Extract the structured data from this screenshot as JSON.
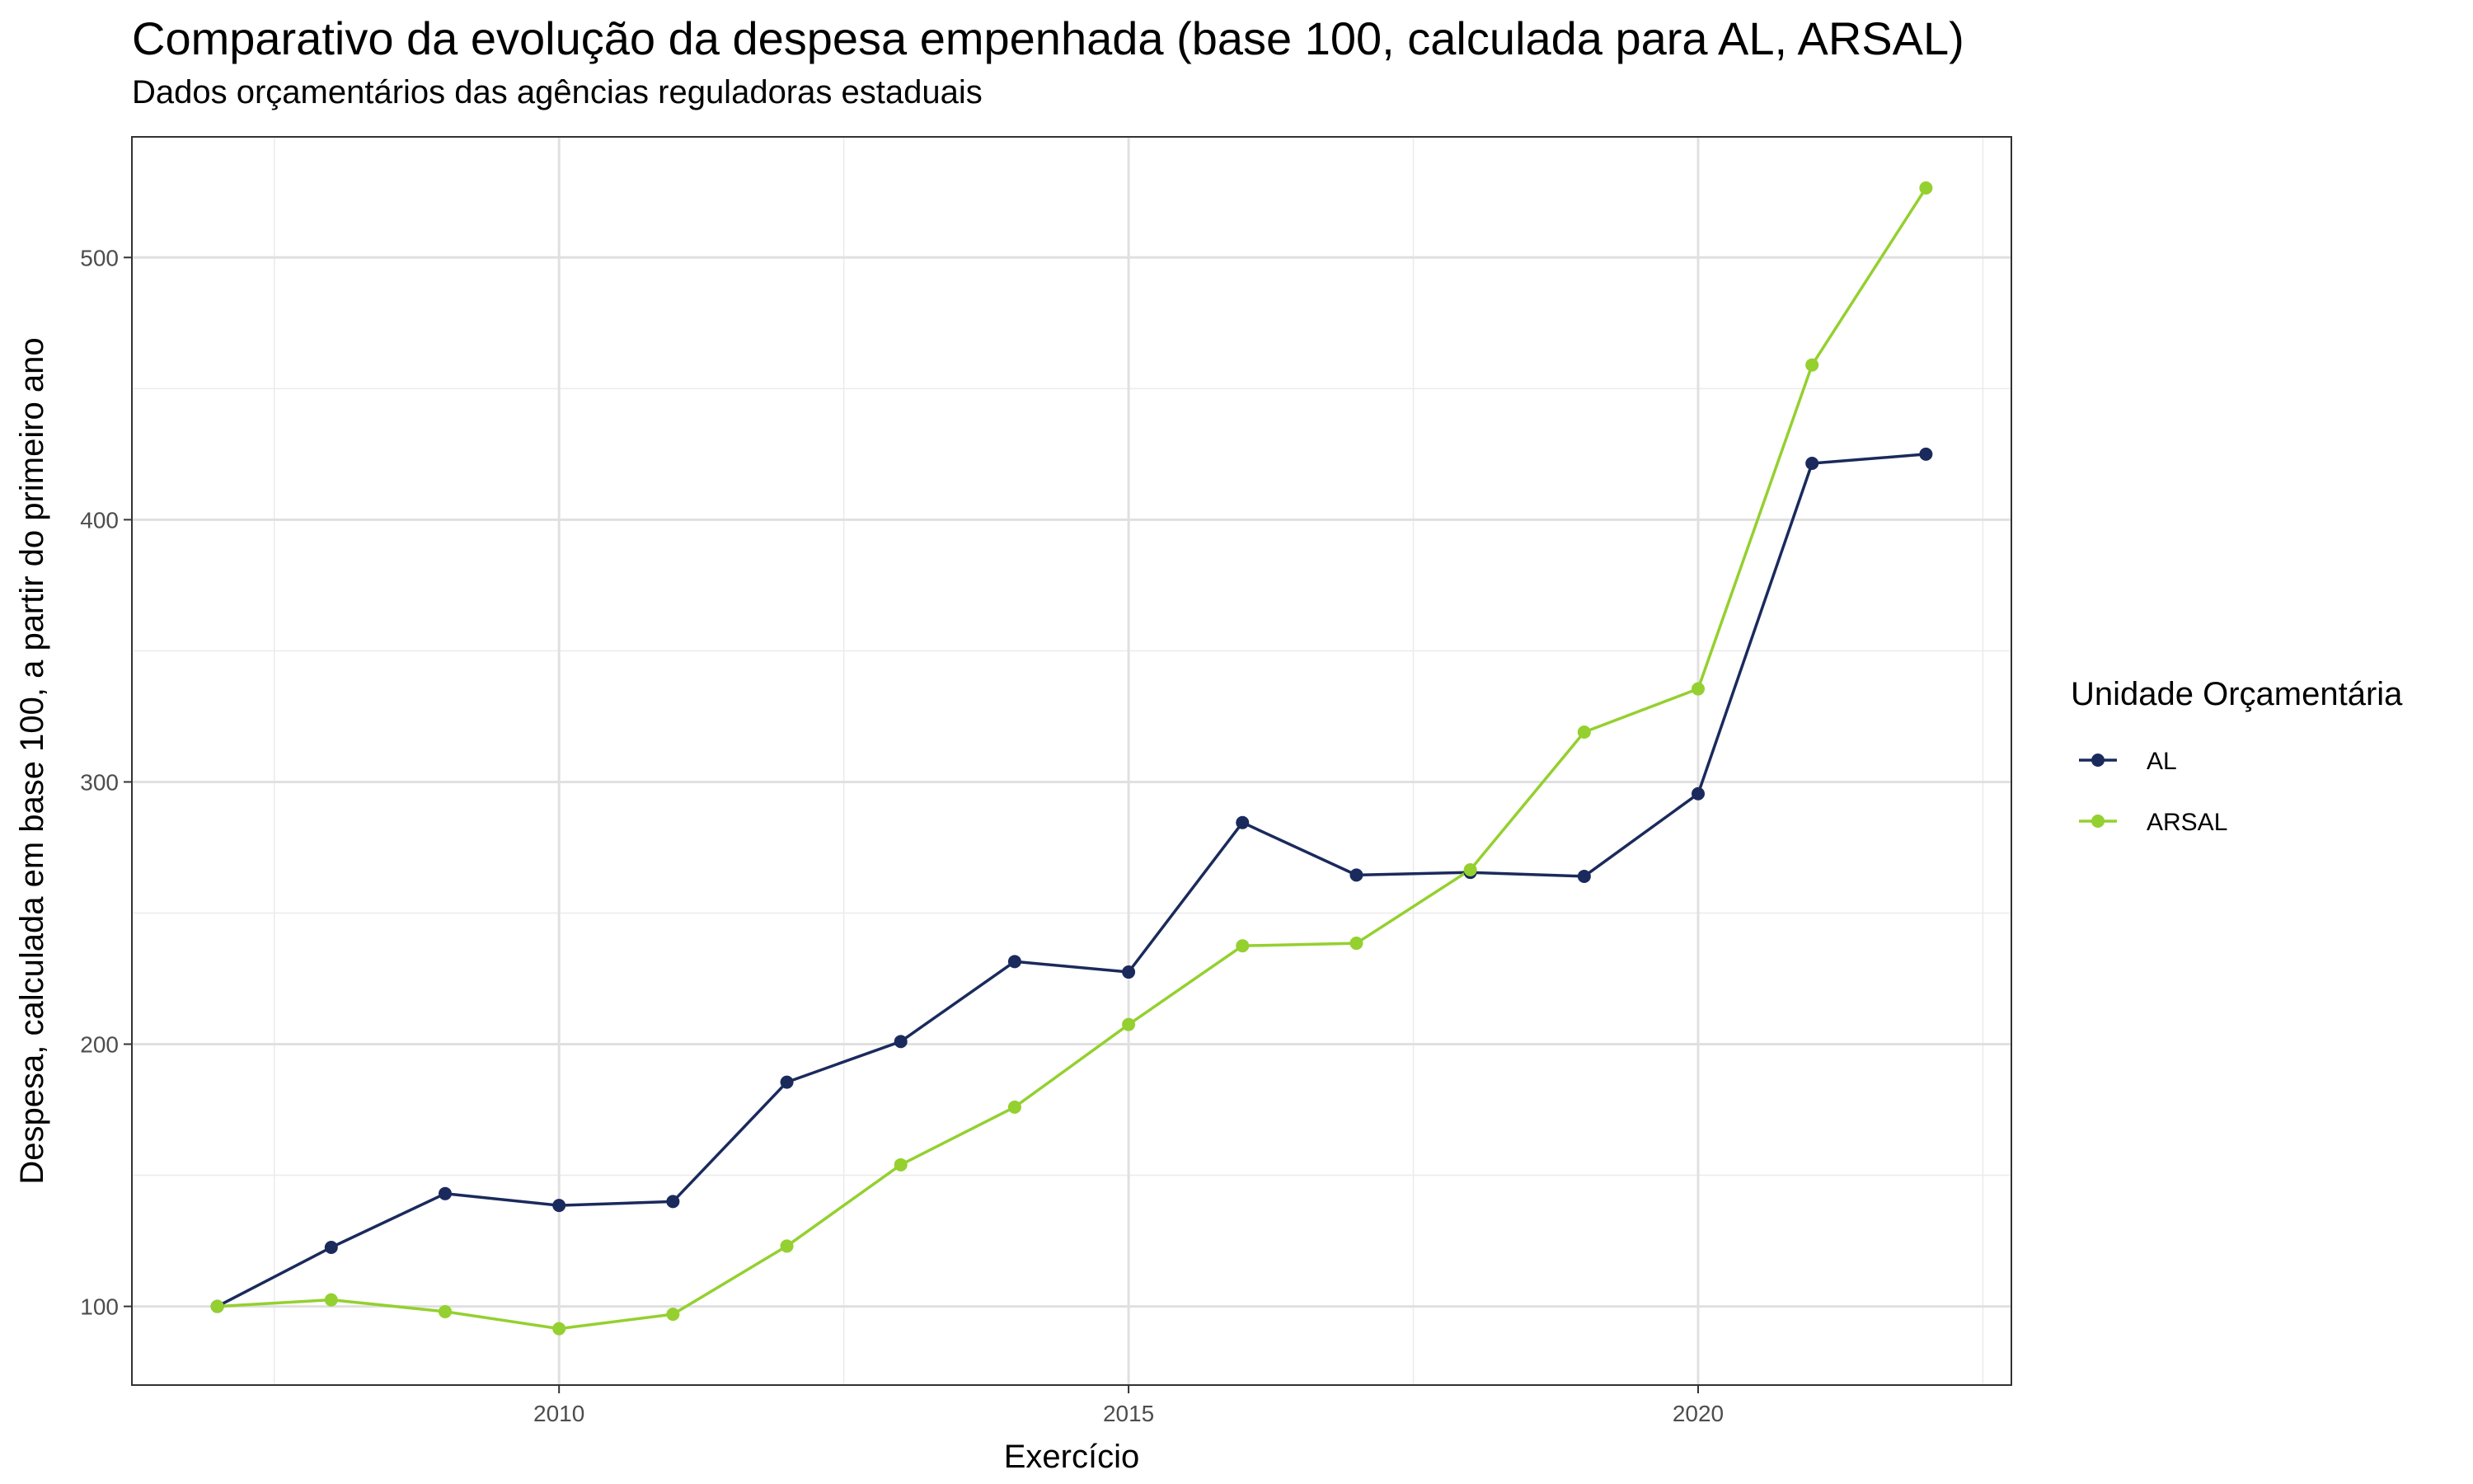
{
  "chart_data": {
    "type": "line",
    "title": "Comparativo da evolução da despesa empenhada (base 100, calculada para AL, ARSAL)",
    "subtitle": "Dados orçamentários das agências reguladoras estaduais",
    "xlabel": "Exercício",
    "ylabel": "Despesa, calculada em base 100, a partir do primeiro ano",
    "x": [
      2007,
      2008,
      2009,
      2010,
      2011,
      2012,
      2013,
      2014,
      2015,
      2016,
      2017,
      2018,
      2019,
      2020,
      2021,
      2022
    ],
    "xlim": [
      2006.25,
      2022.75
    ],
    "ylim": [
      70,
      546
    ],
    "x_ticks": [
      2010,
      2015,
      2020
    ],
    "y_ticks": [
      100,
      200,
      300,
      400,
      500
    ],
    "grid": true,
    "legend_title": "Unidade Orçamentária",
    "legend_position": "right",
    "series": [
      {
        "name": "AL",
        "color": "#1a2a5c",
        "values": [
          100,
          122.5,
          143,
          138.5,
          140,
          185.5,
          201,
          231.5,
          227.5,
          284.5,
          264.5,
          265.5,
          264,
          295.5,
          421.5,
          425
        ]
      },
      {
        "name": "ARSAL",
        "color": "#94d02f",
        "values": [
          100,
          102.5,
          98,
          91.5,
          97,
          123,
          154,
          176,
          207.5,
          237.5,
          238.5,
          266.5,
          319,
          335.5,
          459,
          526.5
        ]
      }
    ],
    "x_tick_labels": [
      "2010",
      "2015",
      "2020"
    ],
    "y_tick_labels": [
      "100",
      "200",
      "300",
      "400",
      "500"
    ]
  }
}
